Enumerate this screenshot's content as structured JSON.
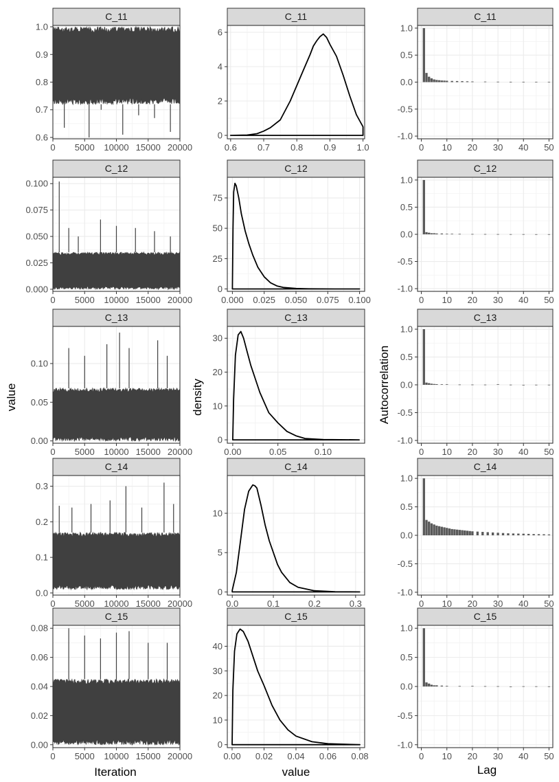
{
  "figure": {
    "columns": [
      {
        "ylabel": "value",
        "xlabel": "Iteration"
      },
      {
        "ylabel": "density",
        "xlabel": "value"
      },
      {
        "ylabel": "Autocorrelation",
        "xlabel": "Lag"
      }
    ]
  },
  "chart_data": [
    {
      "type": "area",
      "panel": "trace",
      "strip": "C_11",
      "xlim": [
        0,
        20000
      ],
      "ylim": [
        0.595,
        1.005
      ],
      "xticks": [
        0,
        5000,
        10000,
        15000,
        20000
      ],
      "xtick_labels": [
        "0",
        "5000",
        "10000",
        "15000",
        "20000"
      ],
      "yticks": [
        0.6,
        0.7,
        0.8,
        0.9,
        1.0
      ],
      "ytick_labels": [
        "0.6",
        "0.7",
        "0.8",
        "0.9",
        "1.0"
      ],
      "band_low": 0.72,
      "band_high": 1.0,
      "spikes": [
        [
          1800,
          0.635
        ],
        [
          5700,
          0.6
        ],
        [
          7600,
          0.7
        ],
        [
          11000,
          0.61
        ],
        [
          13500,
          0.68
        ],
        [
          16000,
          0.67
        ],
        [
          18500,
          0.62
        ]
      ]
    },
    {
      "type": "line",
      "panel": "density",
      "strip": "C_11",
      "xlim": [
        0.59,
        1.005
      ],
      "ylim": [
        -0.2,
        6.4
      ],
      "xticks": [
        0.6,
        0.7,
        0.8,
        0.9,
        1.0
      ],
      "xtick_labels": [
        "0.6",
        "0.7",
        "0.8",
        "0.9",
        "1.0"
      ],
      "yticks": [
        0,
        2,
        4,
        6
      ],
      "ytick_labels": [
        "0",
        "2",
        "4",
        "6"
      ],
      "x": [
        0.6,
        0.65,
        0.68,
        0.7,
        0.72,
        0.75,
        0.78,
        0.8,
        0.82,
        0.84,
        0.85,
        0.86,
        0.87,
        0.88,
        0.89,
        0.9,
        0.92,
        0.94,
        0.96,
        0.98,
        1.0
      ],
      "y": [
        0,
        0.02,
        0.1,
        0.25,
        0.45,
        0.9,
        2.0,
        2.9,
        3.8,
        4.7,
        5.2,
        5.5,
        5.75,
        5.9,
        5.7,
        5.3,
        4.6,
        3.5,
        2.3,
        1.2,
        0.5
      ]
    },
    {
      "type": "bar",
      "panel": "acf",
      "strip": "C_11",
      "xlim": [
        -1.5,
        51.5
      ],
      "ylim": [
        -1.05,
        1.05
      ],
      "xticks": [
        0,
        10,
        20,
        30,
        40,
        50
      ],
      "xtick_labels": [
        "0",
        "10",
        "20",
        "30",
        "40",
        "50"
      ],
      "yticks": [
        -1.0,
        -0.5,
        0.0,
        0.5,
        1.0
      ],
      "ytick_labels": [
        "-1.0",
        "-0.5",
        "0.0",
        "0.5",
        "1.0"
      ],
      "lags": [
        1,
        2,
        3,
        4,
        5,
        6,
        7,
        8,
        9,
        10,
        12,
        14,
        16,
        18,
        20,
        25,
        30,
        35,
        40,
        45,
        50
      ],
      "values": [
        1.0,
        0.17,
        0.1,
        0.07,
        0.05,
        0.04,
        0.035,
        0.03,
        0.028,
        0.025,
        0.022,
        0.02,
        0.018,
        0.015,
        0.012,
        0.01,
        0.008,
        0.006,
        0.005,
        0.004,
        0.003
      ]
    },
    {
      "type": "area",
      "panel": "trace",
      "strip": "C_12",
      "xlim": [
        0,
        20000
      ],
      "ylim": [
        -0.002,
        0.106
      ],
      "xticks": [
        0,
        5000,
        10000,
        15000,
        20000
      ],
      "xtick_labels": [
        "0",
        "5000",
        "10000",
        "15000",
        "20000"
      ],
      "yticks": [
        0.0,
        0.025,
        0.05,
        0.075,
        0.1
      ],
      "ytick_labels": [
        "0.000",
        "0.025",
        "0.050",
        "0.075",
        "0.100"
      ],
      "band_low": 0.0,
      "band_high": 0.035,
      "spikes": [
        [
          1000,
          0.102
        ],
        [
          2500,
          0.058
        ],
        [
          4000,
          0.05
        ],
        [
          7500,
          0.066
        ],
        [
          10000,
          0.06
        ],
        [
          13000,
          0.058
        ],
        [
          16000,
          0.055
        ],
        [
          18500,
          0.05
        ]
      ]
    },
    {
      "type": "line",
      "panel": "density",
      "strip": "C_12",
      "xlim": [
        -0.004,
        0.104
      ],
      "ylim": [
        -2,
        92
      ],
      "xticks": [
        0.0,
        0.025,
        0.05,
        0.075,
        0.1
      ],
      "xtick_labels": [
        "0.000",
        "0.025",
        "0.050",
        "0.075",
        "0.100"
      ],
      "yticks": [
        0,
        25,
        50,
        75
      ],
      "ytick_labels": [
        "0",
        "25",
        "50",
        "75"
      ],
      "x": [
        0.0,
        0.0005,
        0.001,
        0.002,
        0.003,
        0.005,
        0.007,
        0.01,
        0.013,
        0.016,
        0.02,
        0.025,
        0.03,
        0.035,
        0.04,
        0.05,
        0.06,
        0.08,
        0.1
      ],
      "y": [
        0,
        50,
        80,
        87,
        85,
        75,
        62,
        48,
        37,
        28,
        18,
        10,
        5,
        2.5,
        1.2,
        0.4,
        0.1,
        0,
        0
      ]
    },
    {
      "type": "bar",
      "panel": "acf",
      "strip": "C_12",
      "xlim": [
        -1.5,
        51.5
      ],
      "ylim": [
        -1.05,
        1.05
      ],
      "xticks": [
        0,
        10,
        20,
        30,
        40,
        50
      ],
      "xtick_labels": [
        "0",
        "10",
        "20",
        "30",
        "40",
        "50"
      ],
      "yticks": [
        -1.0,
        -0.5,
        0.0,
        0.5,
        1.0
      ],
      "ytick_labels": [
        "-1.0",
        "-0.5",
        "0.0",
        "0.5",
        "1.0"
      ],
      "lags": [
        1,
        2,
        3,
        4,
        5,
        6,
        8,
        10,
        12,
        15,
        20,
        25,
        30,
        35,
        40,
        45,
        50
      ],
      "values": [
        1.0,
        0.04,
        0.03,
        0.02,
        0.02,
        0.015,
        0.015,
        0.01,
        0.01,
        0.008,
        0.006,
        0.005,
        0.004,
        0.003,
        0.003,
        0.002,
        0.002
      ]
    },
    {
      "type": "area",
      "panel": "trace",
      "strip": "C_13",
      "xlim": [
        0,
        20000
      ],
      "ylim": [
        -0.003,
        0.148
      ],
      "xticks": [
        0,
        5000,
        10000,
        15000,
        20000
      ],
      "xtick_labels": [
        "0",
        "5000",
        "10000",
        "15000",
        "20000"
      ],
      "yticks": [
        0.0,
        0.05,
        0.1
      ],
      "ytick_labels": [
        "0.00",
        "0.05",
        "0.10"
      ],
      "band_low": 0.0,
      "band_high": 0.068,
      "spikes": [
        [
          2500,
          0.12
        ],
        [
          5000,
          0.11
        ],
        [
          8500,
          0.125
        ],
        [
          10500,
          0.14
        ],
        [
          12000,
          0.12
        ],
        [
          16500,
          0.13
        ],
        [
          18000,
          0.11
        ]
      ]
    },
    {
      "type": "line",
      "panel": "density",
      "strip": "C_13",
      "xlim": [
        -0.006,
        0.146
      ],
      "ylim": [
        -1,
        33.5
      ],
      "xticks": [
        0.0,
        0.05,
        0.1
      ],
      "xtick_labels": [
        "0.00",
        "0.05",
        "0.10"
      ],
      "yticks": [
        0,
        10,
        20,
        30
      ],
      "ytick_labels": [
        "0",
        "10",
        "20",
        "30"
      ],
      "x": [
        0.0,
        0.001,
        0.003,
        0.006,
        0.009,
        0.012,
        0.016,
        0.02,
        0.025,
        0.03,
        0.035,
        0.04,
        0.05,
        0.06,
        0.07,
        0.08,
        0.1,
        0.14
      ],
      "y": [
        0,
        12,
        25,
        31,
        32,
        30,
        26,
        22,
        18,
        14,
        11,
        8,
        5,
        2.5,
        1.2,
        0.4,
        0.1,
        0
      ]
    },
    {
      "type": "bar",
      "panel": "acf",
      "strip": "C_13",
      "xlim": [
        -1.5,
        51.5
      ],
      "ylim": [
        -1.05,
        1.05
      ],
      "xticks": [
        0,
        10,
        20,
        30,
        40,
        50
      ],
      "xtick_labels": [
        "0",
        "10",
        "20",
        "30",
        "40",
        "50"
      ],
      "yticks": [
        -1.0,
        -0.5,
        0.0,
        0.5,
        1.0
      ],
      "ytick_labels": [
        "-1.0",
        "-0.5",
        "0.0",
        "0.5",
        "1.0"
      ],
      "lags": [
        1,
        2,
        3,
        4,
        5,
        6,
        8,
        10,
        15,
        20,
        25,
        30,
        35,
        40,
        45,
        50
      ],
      "values": [
        1.0,
        0.04,
        0.03,
        0.02,
        0.015,
        0.012,
        0.01,
        0.01,
        0.006,
        0.005,
        0.004,
        0.01,
        0.003,
        -0.005,
        0.002,
        0.002
      ]
    },
    {
      "type": "area",
      "panel": "trace",
      "strip": "C_14",
      "xlim": [
        0,
        20000
      ],
      "ylim": [
        -0.006,
        0.33
      ],
      "xticks": [
        0,
        5000,
        10000,
        15000,
        20000
      ],
      "xtick_labels": [
        "0",
        "5000",
        "10000",
        "15000",
        "20000"
      ],
      "yticks": [
        0.0,
        0.1,
        0.2,
        0.3
      ],
      "ytick_labels": [
        "0.0",
        "0.1",
        "0.2",
        "0.3"
      ],
      "band_low": 0.01,
      "band_high": 0.17,
      "spikes": [
        [
          1000,
          0.245
        ],
        [
          3000,
          0.24
        ],
        [
          6000,
          0.25
        ],
        [
          9000,
          0.26
        ],
        [
          11500,
          0.3
        ],
        [
          14000,
          0.24
        ],
        [
          17500,
          0.31
        ],
        [
          19000,
          0.25
        ]
      ]
    },
    {
      "type": "line",
      "panel": "density",
      "strip": "C_14",
      "xlim": [
        -0.012,
        0.322
      ],
      "ylim": [
        -0.4,
        14.8
      ],
      "xticks": [
        0.0,
        0.1,
        0.2,
        0.3
      ],
      "xtick_labels": [
        "0.0",
        "0.1",
        "0.2",
        "0.3"
      ],
      "yticks": [
        0,
        5,
        10
      ],
      "ytick_labels": [
        "0",
        "5",
        "10"
      ],
      "x": [
        0.0,
        0.01,
        0.02,
        0.03,
        0.04,
        0.05,
        0.055,
        0.06,
        0.07,
        0.08,
        0.09,
        0.1,
        0.11,
        0.12,
        0.14,
        0.16,
        0.2,
        0.25,
        0.31
      ],
      "y": [
        0.2,
        2.5,
        6.5,
        10.5,
        12.8,
        13.6,
        13.5,
        13.2,
        11.0,
        8.5,
        6.5,
        5.0,
        3.5,
        2.5,
        1.2,
        0.6,
        0.15,
        0.03,
        0
      ]
    },
    {
      "type": "bar",
      "panel": "acf",
      "strip": "C_14",
      "xlim": [
        -1.5,
        51.5
      ],
      "ylim": [
        -1.05,
        1.05
      ],
      "xticks": [
        0,
        10,
        20,
        30,
        40,
        50
      ],
      "xtick_labels": [
        "0",
        "10",
        "20",
        "30",
        "40",
        "50"
      ],
      "yticks": [
        -1.0,
        -0.5,
        0.0,
        0.5,
        1.0
      ],
      "ytick_labels": [
        "-1.0",
        "-0.5",
        "0.0",
        "0.5",
        "1.0"
      ],
      "lags": [
        1,
        2,
        3,
        4,
        5,
        6,
        7,
        8,
        9,
        10,
        11,
        12,
        13,
        14,
        15,
        16,
        17,
        18,
        19,
        20,
        22,
        24,
        26,
        28,
        30,
        32,
        34,
        36,
        38,
        40,
        42,
        44,
        46,
        48,
        50
      ],
      "values": [
        1.0,
        0.27,
        0.24,
        0.21,
        0.19,
        0.17,
        0.16,
        0.15,
        0.14,
        0.13,
        0.12,
        0.11,
        0.105,
        0.1,
        0.095,
        0.09,
        0.085,
        0.08,
        0.075,
        0.07,
        0.065,
        0.06,
        0.055,
        0.05,
        0.045,
        0.04,
        0.035,
        0.032,
        0.03,
        0.028,
        0.025,
        0.022,
        0.02,
        0.018,
        0.015
      ]
    },
    {
      "type": "area",
      "panel": "trace",
      "strip": "C_15",
      "xlim": [
        0,
        20000
      ],
      "ylim": [
        -0.002,
        0.082
      ],
      "xticks": [
        0,
        5000,
        10000,
        15000,
        20000
      ],
      "xtick_labels": [
        "0",
        "5000",
        "10000",
        "15000",
        "20000"
      ],
      "yticks": [
        0.0,
        0.02,
        0.04,
        0.06,
        0.08
      ],
      "ytick_labels": [
        "0.00",
        "0.02",
        "0.04",
        "0.06",
        "0.08"
      ],
      "band_low": 0.0,
      "band_high": 0.045,
      "spikes": [
        [
          2500,
          0.08
        ],
        [
          5000,
          0.075
        ],
        [
          7500,
          0.073
        ],
        [
          10000,
          0.077
        ],
        [
          12000,
          0.078
        ],
        [
          15000,
          0.07
        ],
        [
          18000,
          0.07
        ]
      ]
    },
    {
      "type": "line",
      "panel": "density",
      "strip": "C_15",
      "xlim": [
        -0.003,
        0.083
      ],
      "ylim": [
        -1.2,
        48.5
      ],
      "xticks": [
        0.0,
        0.02,
        0.04,
        0.06,
        0.08
      ],
      "xtick_labels": [
        "0.00",
        "0.02",
        "0.04",
        "0.06",
        "0.08"
      ],
      "yticks": [
        0,
        10,
        20,
        30,
        40
      ],
      "ytick_labels": [
        "0",
        "10",
        "20",
        "30",
        "40"
      ],
      "x": [
        0.0,
        0.0005,
        0.0015,
        0.003,
        0.005,
        0.007,
        0.01,
        0.013,
        0.016,
        0.02,
        0.025,
        0.03,
        0.035,
        0.04,
        0.05,
        0.06,
        0.08
      ],
      "y": [
        0,
        22,
        38,
        45,
        47,
        46,
        42,
        36,
        30,
        24,
        16,
        10,
        6,
        3.5,
        1.2,
        0.4,
        0
      ]
    },
    {
      "type": "bar",
      "panel": "acf",
      "strip": "C_15",
      "xlim": [
        -1.5,
        51.5
      ],
      "ylim": [
        -1.05,
        1.05
      ],
      "xticks": [
        0,
        10,
        20,
        30,
        40,
        50
      ],
      "xtick_labels": [
        "0",
        "10",
        "20",
        "30",
        "40",
        "50"
      ],
      "yticks": [
        -1.0,
        -0.5,
        0.0,
        0.5,
        1.0
      ],
      "ytick_labels": [
        "-1.0",
        "-0.5",
        "0.0",
        "0.5",
        "1.0"
      ],
      "lags": [
        1,
        2,
        3,
        4,
        5,
        6,
        8,
        10,
        15,
        20,
        25,
        30,
        35,
        40,
        45,
        50
      ],
      "values": [
        1.0,
        0.07,
        0.05,
        0.03,
        0.02,
        0.02,
        0.015,
        0.01,
        0.008,
        0.01,
        0.006,
        0.005,
        -0.003,
        0.004,
        0.003,
        0.002
      ]
    }
  ]
}
